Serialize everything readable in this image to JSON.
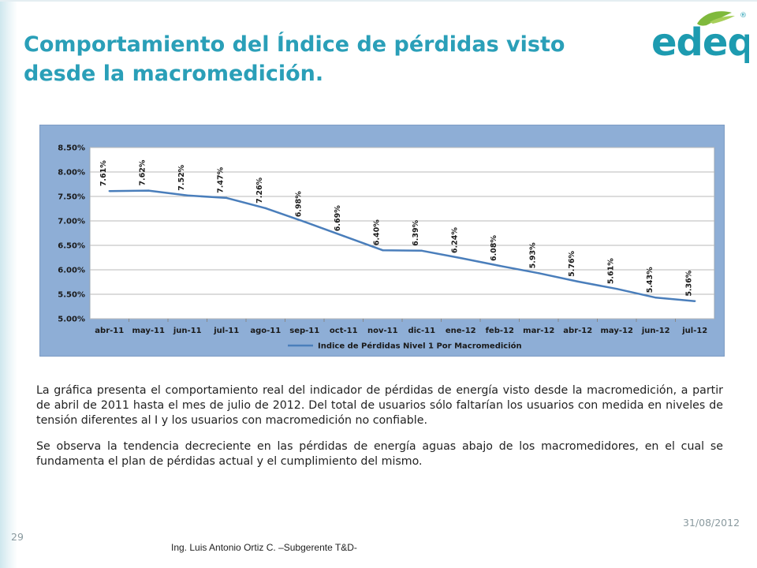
{
  "slide": {
    "title_line1": "Comportamiento del Índice de pérdidas visto",
    "title_line2": "desde la macromedición.",
    "logo_text": "edeq",
    "registered_mark": "®",
    "paragraph1": "La gráfica presenta el comportamiento real del indicador de pérdidas de energía visto desde la macromedición, a partir de abril de 2011 hasta el mes de julio de 2012. Del total de usuarios sólo faltarían los usuarios con medida en niveles de tensión diferentes al I y los usuarios con macromedición no confiable.",
    "paragraph2": "Se observa la tendencia decreciente en las pérdidas de energía aguas abajo de los macromedidores, en el cual se fundamenta el plan de pérdidas actual y el cumplimiento del mismo.",
    "date": "31/08/2012",
    "page_number": "29",
    "author": "Ing. Luis Antonio Ortiz C. –Subgerente T&D-"
  },
  "colors": {
    "title": "#2a9fb8",
    "logo": "#1d9bb0",
    "leaf": "#7fb93c",
    "chart_outer": "#8eaed6",
    "plot_bg": "#ffffff",
    "line": "#4a7ebb"
  },
  "chart_data": {
    "type": "line",
    "categories": [
      "abr-11",
      "may-11",
      "jun-11",
      "jul-11",
      "ago-11",
      "sep-11",
      "oct-11",
      "nov-11",
      "dic-11",
      "ene-12",
      "feb-12",
      "mar-12",
      "abr-12",
      "may-12",
      "jun-12",
      "jul-12"
    ],
    "series": [
      {
        "name": "Indice de Pérdidas Nivel 1 Por Macromedición",
        "values": [
          7.61,
          7.62,
          7.52,
          7.47,
          7.26,
          6.98,
          6.69,
          6.4,
          6.39,
          6.24,
          6.08,
          5.93,
          5.76,
          5.61,
          5.43,
          5.36
        ],
        "labels": [
          "7.61%",
          "7.62%",
          "7.52%",
          "7.47%",
          "7.26%",
          "6.98%",
          "6.69%",
          "6.40%",
          "6.39%",
          "6.24%",
          "6.08%",
          "5.93%",
          "5.76%",
          "5.61%",
          "5.43%",
          "5.36%"
        ]
      }
    ],
    "yticks": [
      5.0,
      5.5,
      6.0,
      6.5,
      7.0,
      7.5,
      8.0,
      8.5
    ],
    "ytick_labels": [
      "5.00%",
      "5.50%",
      "6.00%",
      "6.50%",
      "7.00%",
      "7.50%",
      "8.00%",
      "8.50%"
    ],
    "ylim": [
      5.0,
      8.5
    ],
    "legend_position": "bottom",
    "grid": true,
    "title": "",
    "xlabel": "",
    "ylabel": ""
  }
}
